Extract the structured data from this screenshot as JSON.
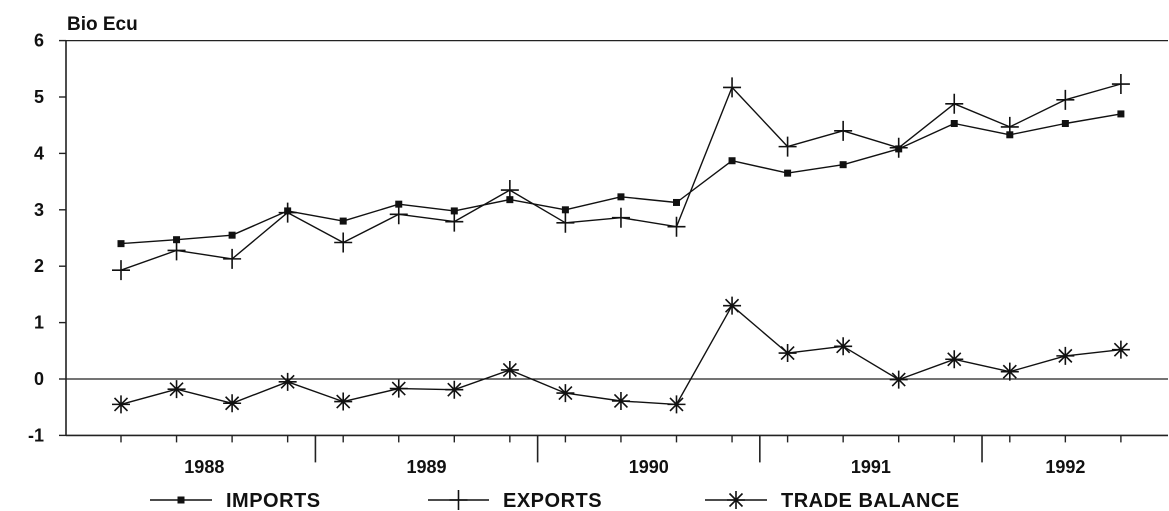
{
  "chart_data": {
    "type": "line",
    "title": "",
    "ylabel": "Bio Ecu",
    "xlabel": "",
    "ylim": [
      -1,
      6
    ],
    "yticks": [
      -1,
      0,
      1,
      2,
      3,
      4,
      5,
      6
    ],
    "grid": false,
    "legend_position": "bottom",
    "x_axis": {
      "periods_per_year": 4,
      "year_labels": [
        "1988",
        "1989",
        "1990",
        "1991",
        "1992"
      ]
    },
    "series": [
      {
        "name": "IMPORTS",
        "marker": "square",
        "values": [
          2.4,
          2.47,
          2.55,
          2.98,
          2.8,
          3.1,
          2.98,
          3.18,
          3.0,
          3.23,
          3.13,
          3.87,
          3.65,
          3.8,
          4.08,
          4.53,
          4.33,
          4.53,
          4.7
        ]
      },
      {
        "name": "EXPORTS",
        "marker": "plus",
        "values": [
          1.93,
          2.28,
          2.13,
          2.95,
          2.42,
          2.92,
          2.79,
          3.35,
          2.77,
          2.86,
          2.7,
          5.17,
          4.12,
          4.4,
          4.1,
          4.88,
          4.47,
          4.95,
          5.23
        ]
      },
      {
        "name": "TRADE BALANCE",
        "marker": "asterisk",
        "values": [
          -0.45,
          -0.18,
          -0.43,
          -0.05,
          -0.4,
          -0.17,
          -0.19,
          0.16,
          -0.25,
          -0.39,
          -0.45,
          1.3,
          0.46,
          0.58,
          -0.01,
          0.35,
          0.13,
          0.41,
          0.52
        ]
      }
    ]
  }
}
